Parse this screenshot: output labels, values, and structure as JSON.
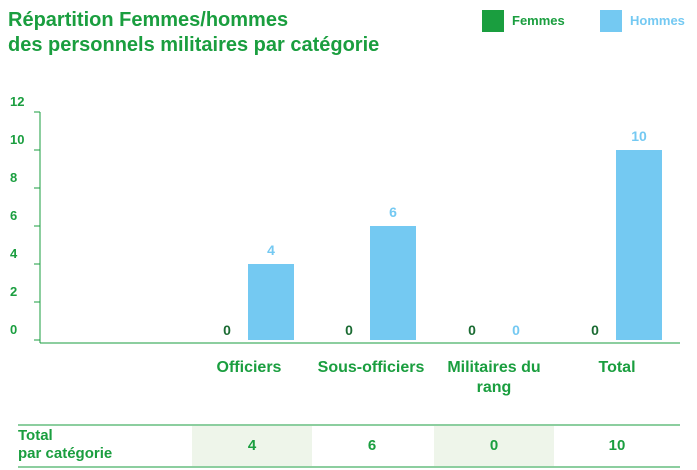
{
  "chart_data": {
    "type": "bar",
    "title": [
      "Répartition Femmes/hommes",
      "des personnels militaires par catégorie"
    ],
    "categories": [
      "Officiers",
      "Sous-officiers",
      "Militaires du rang",
      "Total"
    ],
    "series": [
      {
        "name": "Femmes",
        "color": "#1a9e3f",
        "values": [
          0,
          0,
          0,
          0
        ]
      },
      {
        "name": "Hommes",
        "color": "#74c9f2",
        "values": [
          4,
          6,
          0,
          10
        ]
      }
    ],
    "ylim": [
      0,
      12
    ],
    "yticks": [
      0,
      2,
      4,
      6,
      8,
      10,
      12
    ],
    "grid": false,
    "legend": "top-right"
  },
  "table": {
    "header": [
      "Total",
      "par catégorie"
    ],
    "cells": [
      4,
      6,
      0,
      10
    ]
  }
}
